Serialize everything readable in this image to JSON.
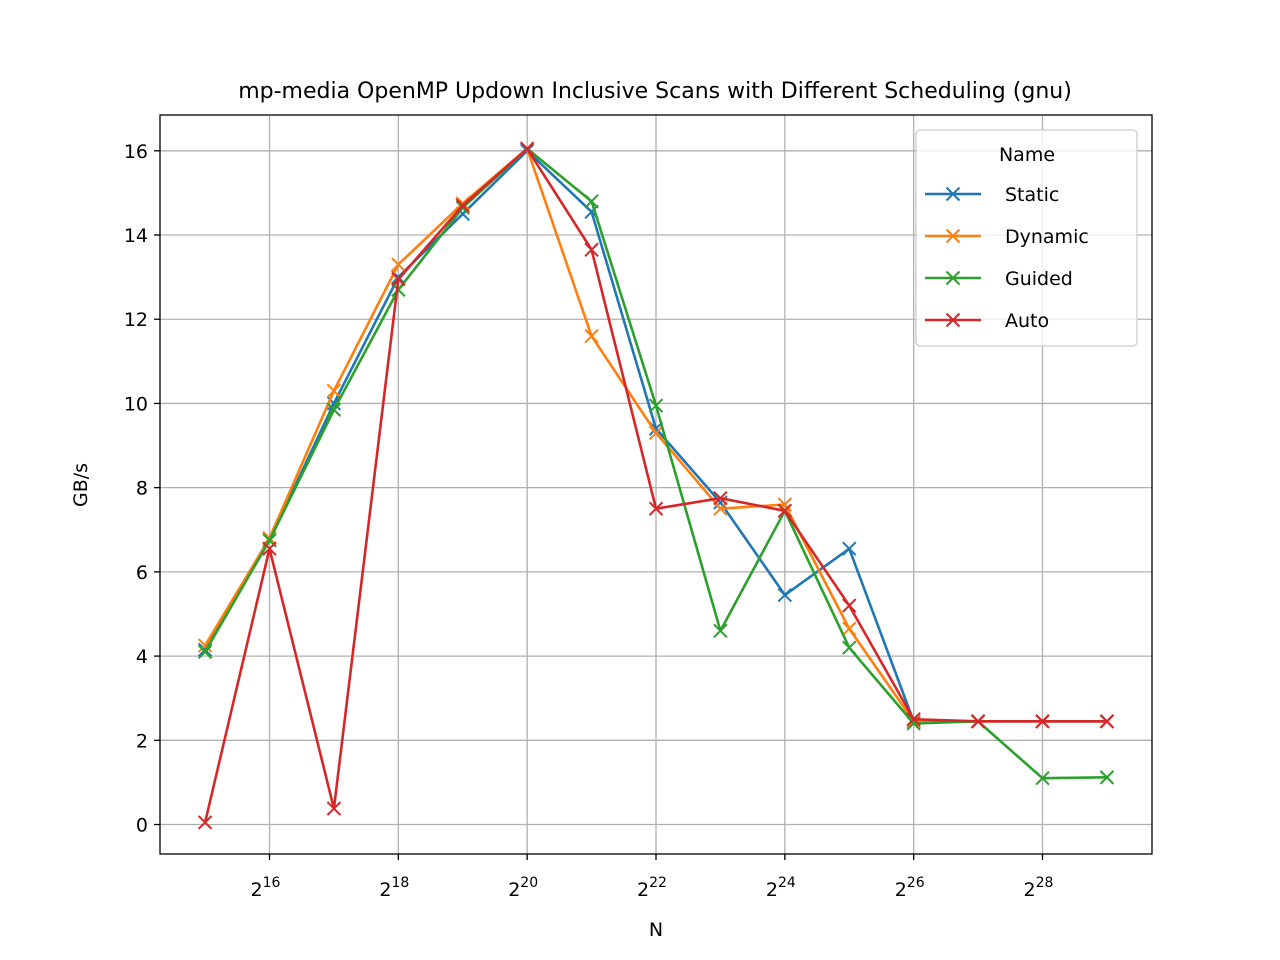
{
  "chart_data": {
    "type": "line",
    "title": "mp-media OpenMP Updown Inclusive Scans with Different Scheduling (gnu)",
    "xlabel": "N",
    "ylabel": "GB/s",
    "x_scale": "log2",
    "x_exponents": [
      15,
      16,
      17,
      18,
      19,
      20,
      21,
      22,
      23,
      24,
      25,
      26,
      27,
      28,
      29
    ],
    "xlim_exponent": [
      14.3,
      29.7
    ],
    "ylim": [
      -0.7,
      16.85
    ],
    "x_tick_base": "2",
    "x_ticks": [
      {
        "exp": 16,
        "sup": "16"
      },
      {
        "exp": 18,
        "sup": "18"
      },
      {
        "exp": 20,
        "sup": "20"
      },
      {
        "exp": 22,
        "sup": "22"
      },
      {
        "exp": 24,
        "sup": "24"
      },
      {
        "exp": 26,
        "sup": "26"
      },
      {
        "exp": 28,
        "sup": "28"
      }
    ],
    "y_ticks": [
      {
        "value": 0,
        "label": "0"
      },
      {
        "value": 2,
        "label": "2"
      },
      {
        "value": 4,
        "label": "4"
      },
      {
        "value": 6,
        "label": "6"
      },
      {
        "value": 8,
        "label": "8"
      },
      {
        "value": 10,
        "label": "10"
      },
      {
        "value": 12,
        "label": "12"
      },
      {
        "value": 14,
        "label": "14"
      },
      {
        "value": 16,
        "label": "16"
      }
    ],
    "grid": true,
    "legend": {
      "title": "Name",
      "position": "upper-right"
    },
    "series": [
      {
        "name": "Static",
        "color": "#1f77b4",
        "values": [
          4.15,
          6.75,
          10.0,
          13.0,
          14.5,
          16.0,
          14.55,
          9.4,
          7.65,
          5.45,
          6.55,
          2.45,
          2.45,
          2.45,
          2.45
        ]
      },
      {
        "name": "Dynamic",
        "color": "#ff7f0e",
        "values": [
          4.25,
          6.8,
          10.3,
          13.3,
          14.75,
          16.05,
          11.6,
          9.3,
          7.5,
          7.6,
          4.65,
          2.45,
          2.45,
          2.45,
          2.45
        ]
      },
      {
        "name": "Guided",
        "color": "#2ca02c",
        "values": [
          4.1,
          6.75,
          9.85,
          12.7,
          14.65,
          16.05,
          14.8,
          9.95,
          4.6,
          7.45,
          4.2,
          2.4,
          2.45,
          1.1,
          1.12
        ]
      },
      {
        "name": "Auto",
        "color": "#d62728",
        "values": [
          0.05,
          6.55,
          0.38,
          12.95,
          14.7,
          16.05,
          13.65,
          7.5,
          7.75,
          7.45,
          5.2,
          2.5,
          2.45,
          2.45,
          2.45
        ]
      }
    ]
  }
}
